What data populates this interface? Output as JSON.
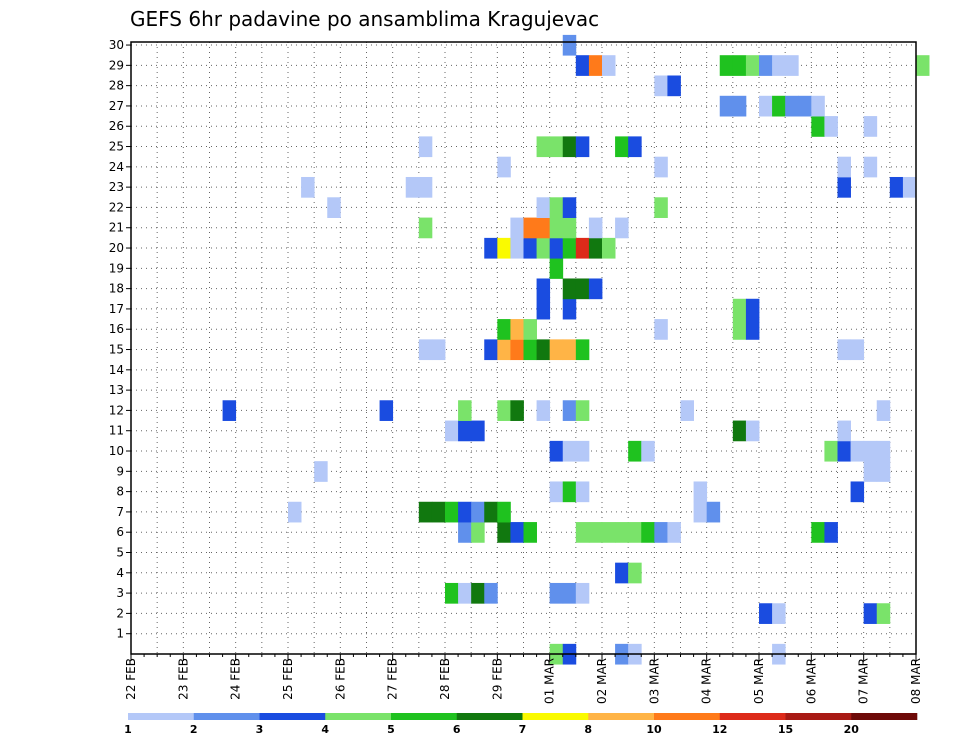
{
  "chart_data": {
    "type": "heatmap",
    "title": "GEFS 6hr padavine po ansamblima Kragujevac",
    "xlabel": "",
    "ylabel": "",
    "x_tick_labels": [
      "22 FEB",
      "23 FEB",
      "24 FEB",
      "25 FEB",
      "26 FEB",
      "27 FEB",
      "28 FEB",
      "29 FEB",
      "01 MAR",
      "02 MAR",
      "03 MAR",
      "04 MAR",
      "05 MAR",
      "06 MAR",
      "07 MAR",
      "08 MAR"
    ],
    "x_range": [
      "22 FEB 00Z",
      "08 MAR 00Z"
    ],
    "x_step": "6hr",
    "y_tick_labels": [
      "1",
      "2",
      "3",
      "4",
      "5",
      "6",
      "7",
      "8",
      "9",
      "10",
      "11",
      "12",
      "13",
      "14",
      "15",
      "16",
      "17",
      "18",
      "19",
      "20",
      "21",
      "22",
      "23",
      "24",
      "25",
      "26",
      "27",
      "28",
      "29",
      "30"
    ],
    "ylim": [
      0,
      30
    ],
    "grid": true,
    "legend": {
      "placement": "bottom",
      "boundaries": [
        "1",
        "2",
        "3",
        "4",
        "5",
        "6",
        "7",
        "8",
        "10",
        "12",
        "15",
        "20"
      ],
      "colors": [
        "#b4c8f8",
        "#6090ec",
        "#1a4ce0",
        "#7ae36a",
        "#1fc21f",
        "#11780f",
        "#fafa00",
        "#ffb446",
        "#ff7a1a",
        "#dd2a1a",
        "#a81a14",
        "#6e0a08"
      ]
    },
    "cells_note": "each cell: [member(0-30), time index in 6hr steps from 22 FEB 00Z, value]",
    "cells": [
      [
        0,
        32,
        4
      ],
      [
        0,
        33,
        3
      ],
      [
        0,
        37,
        2
      ],
      [
        0,
        38,
        1
      ],
      [
        0,
        49,
        1
      ],
      [
        2,
        48,
        3
      ],
      [
        2,
        49,
        1
      ],
      [
        2,
        56,
        3
      ],
      [
        2,
        57,
        4
      ],
      [
        3,
        24,
        5
      ],
      [
        3,
        25,
        1
      ],
      [
        3,
        26,
        6
      ],
      [
        3,
        27,
        2
      ],
      [
        3,
        32,
        2
      ],
      [
        3,
        33,
        2
      ],
      [
        3,
        34,
        1
      ],
      [
        4,
        37,
        3
      ],
      [
        4,
        38,
        4
      ],
      [
        6,
        25,
        2
      ],
      [
        6,
        26,
        4
      ],
      [
        6,
        28,
        6
      ],
      [
        6,
        29,
        3
      ],
      [
        6,
        30,
        5
      ],
      [
        6,
        34,
        4
      ],
      [
        6,
        35,
        4
      ],
      [
        6,
        36,
        4
      ],
      [
        6,
        37,
        4
      ],
      [
        6,
        38,
        4
      ],
      [
        6,
        39,
        5
      ],
      [
        6,
        40,
        2
      ],
      [
        6,
        41,
        1
      ],
      [
        6,
        52,
        5
      ],
      [
        6,
        53,
        3
      ],
      [
        7,
        12,
        1
      ],
      [
        7,
        22,
        6
      ],
      [
        7,
        23,
        6
      ],
      [
        7,
        24,
        5
      ],
      [
        7,
        25,
        3
      ],
      [
        7,
        26,
        2
      ],
      [
        7,
        27,
        6
      ],
      [
        7,
        28,
        5
      ],
      [
        7,
        43,
        1
      ],
      [
        7,
        44,
        2
      ],
      [
        8,
        32,
        1
      ],
      [
        8,
        33,
        5
      ],
      [
        8,
        34,
        1
      ],
      [
        8,
        43,
        1
      ],
      [
        8,
        55,
        3
      ],
      [
        9,
        14,
        1
      ],
      [
        9,
        56,
        1
      ],
      [
        9,
        57,
        1
      ],
      [
        10,
        32,
        3
      ],
      [
        10,
        33,
        1
      ],
      [
        10,
        34,
        1
      ],
      [
        10,
        38,
        5
      ],
      [
        10,
        39,
        1
      ],
      [
        10,
        53,
        4
      ],
      [
        10,
        54,
        3
      ],
      [
        10,
        55,
        1
      ],
      [
        10,
        56,
        1
      ],
      [
        10,
        57,
        1
      ],
      [
        11,
        24,
        1
      ],
      [
        11,
        25,
        3
      ],
      [
        11,
        26,
        3
      ],
      [
        11,
        46,
        6
      ],
      [
        11,
        47,
        1
      ],
      [
        11,
        54,
        1
      ],
      [
        12,
        7,
        3
      ],
      [
        12,
        19,
        3
      ],
      [
        12,
        25,
        4
      ],
      [
        12,
        28,
        4
      ],
      [
        12,
        29,
        6
      ],
      [
        12,
        31,
        1
      ],
      [
        12,
        33,
        2
      ],
      [
        12,
        34,
        4
      ],
      [
        12,
        42,
        1
      ],
      [
        12,
        57,
        1
      ],
      [
        15,
        22,
        1
      ],
      [
        15,
        23,
        1
      ],
      [
        15,
        27,
        3
      ],
      [
        15,
        28,
        8
      ],
      [
        15,
        29,
        9
      ],
      [
        15,
        30,
        5
      ],
      [
        15,
        31,
        6
      ],
      [
        15,
        32,
        8
      ],
      [
        15,
        33,
        8
      ],
      [
        15,
        34,
        5
      ],
      [
        15,
        54,
        1
      ],
      [
        15,
        55,
        1
      ],
      [
        16,
        28,
        5
      ],
      [
        16,
        29,
        8
      ],
      [
        16,
        30,
        4
      ],
      [
        16,
        40,
        1
      ],
      [
        16,
        46,
        4
      ],
      [
        16,
        47,
        3
      ],
      [
        17,
        31,
        3
      ],
      [
        17,
        33,
        3
      ],
      [
        17,
        46,
        4
      ],
      [
        17,
        47,
        3
      ],
      [
        18,
        31,
        3
      ],
      [
        18,
        33,
        6
      ],
      [
        18,
        34,
        6
      ],
      [
        18,
        35,
        3
      ],
      [
        19,
        32,
        5
      ],
      [
        20,
        27,
        3
      ],
      [
        20,
        28,
        7
      ],
      [
        20,
        29,
        1
      ],
      [
        20,
        30,
        3
      ],
      [
        20,
        31,
        4
      ],
      [
        20,
        32,
        3
      ],
      [
        20,
        33,
        5
      ],
      [
        20,
        34,
        10
      ],
      [
        20,
        35,
        6
      ],
      [
        20,
        36,
        4
      ],
      [
        21,
        22,
        4
      ],
      [
        21,
        29,
        1
      ],
      [
        21,
        30,
        9
      ],
      [
        21,
        31,
        9
      ],
      [
        21,
        32,
        4
      ],
      [
        21,
        33,
        4
      ],
      [
        21,
        35,
        1
      ],
      [
        21,
        37,
        1
      ],
      [
        22,
        15,
        1
      ],
      [
        22,
        31,
        1
      ],
      [
        22,
        32,
        4
      ],
      [
        22,
        33,
        3
      ],
      [
        22,
        40,
        4
      ],
      [
        23,
        13,
        1
      ],
      [
        23,
        21,
        1
      ],
      [
        23,
        22,
        1
      ],
      [
        23,
        54,
        3
      ],
      [
        23,
        58,
        3
      ],
      [
        23,
        59,
        1
      ],
      [
        24,
        28,
        1
      ],
      [
        24,
        40,
        1
      ],
      [
        24,
        54,
        1
      ],
      [
        24,
        56,
        1
      ],
      [
        25,
        22,
        1
      ],
      [
        25,
        31,
        4
      ],
      [
        25,
        32,
        4
      ],
      [
        25,
        33,
        6
      ],
      [
        25,
        34,
        3
      ],
      [
        25,
        37,
        5
      ],
      [
        25,
        38,
        3
      ],
      [
        26,
        52,
        5
      ],
      [
        26,
        53,
        1
      ],
      [
        26,
        56,
        1
      ],
      [
        27,
        45,
        2
      ],
      [
        27,
        46,
        2
      ],
      [
        27,
        48,
        1
      ],
      [
        27,
        49,
        5
      ],
      [
        27,
        50,
        2
      ],
      [
        27,
        51,
        2
      ],
      [
        27,
        52,
        1
      ],
      [
        28,
        40,
        1
      ],
      [
        28,
        41,
        3
      ],
      [
        29,
        34,
        3
      ],
      [
        29,
        35,
        9
      ],
      [
        29,
        36,
        1
      ],
      [
        29,
        45,
        5
      ],
      [
        29,
        46,
        5
      ],
      [
        29,
        47,
        4
      ],
      [
        29,
        48,
        2
      ],
      [
        29,
        49,
        1
      ],
      [
        29,
        50,
        1
      ],
      [
        29,
        60,
        4
      ],
      [
        30,
        33,
        2
      ]
    ]
  }
}
